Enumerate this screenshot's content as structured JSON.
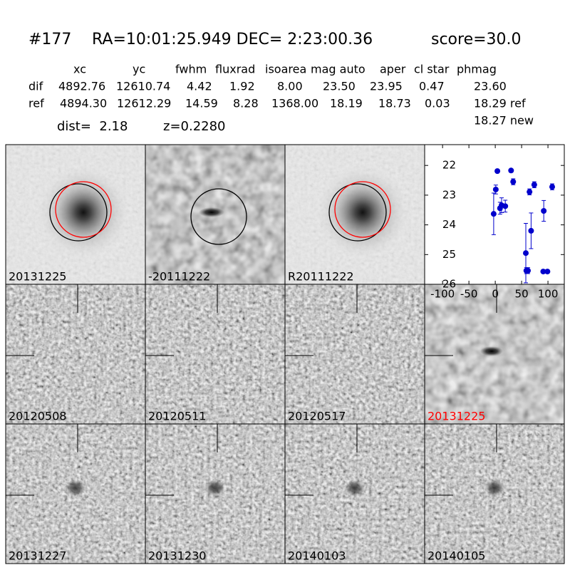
{
  "header": {
    "id": "#177",
    "coords": "RA=10:01:25.949 DEC= 2:23:00.36",
    "score": "score=30.0"
  },
  "table": {
    "header": [
      "xc",
      "yc",
      "fwhm",
      "fluxrad",
      "isoarea",
      "mag auto",
      "aper",
      "cl star",
      "phmag"
    ],
    "rows": [
      [
        "dif",
        "4892.76",
        "12610.74",
        "4.42",
        "1.92",
        "8.00",
        "23.50",
        "23.95",
        "0.47",
        "23.60"
      ],
      [
        "ref",
        "4894.30",
        "12612.29",
        "14.59",
        "8.28",
        "1368.00",
        "18.19",
        "18.73",
        "0.03",
        "18.29 ref"
      ]
    ],
    "note": "18.27 new"
  },
  "info": {
    "dist": "dist=  2.18",
    "z": "z=0.2280"
  },
  "panels": [
    {
      "label": "20131225"
    },
    {
      "label": "-20111222"
    },
    {
      "label": "R20111222"
    },
    {
      "label": "20120508"
    },
    {
      "label": "20120511"
    },
    {
      "label": "20120517"
    },
    {
      "label": "20131225",
      "label_color": "#ff0000"
    },
    {
      "label": "20131227"
    },
    {
      "label": "20131230"
    },
    {
      "label": "20140103"
    },
    {
      "label": "20140105"
    }
  ],
  "chart_data": {
    "type": "scatter",
    "color": "#0000cc",
    "x": [
      -3,
      1,
      4,
      9,
      12,
      19,
      30,
      34,
      58,
      59,
      62,
      65,
      68,
      74,
      91,
      92,
      99,
      108
    ],
    "values": [
      23.63,
      22.81,
      22.19,
      23.44,
      23.34,
      23.37,
      22.17,
      22.55,
      24.95,
      25.54,
      25.54,
      22.89,
      24.2,
      22.65,
      25.57,
      23.53,
      25.57,
      22.72
    ],
    "errors": [
      0.7,
      0.15,
      0.05,
      0.2,
      0.25,
      0.2,
      0.05,
      0.1,
      1.0,
      0.1,
      0.1,
      0.1,
      0.6,
      0.1,
      0.05,
      0.35,
      0.05,
      0.1
    ],
    "xlim": [
      -134,
      131
    ],
    "ylim": [
      26,
      21.3
    ],
    "xticks": [
      -100,
      -50,
      0,
      50,
      100
    ],
    "yticks": [
      22,
      23,
      24,
      25,
      26
    ]
  }
}
